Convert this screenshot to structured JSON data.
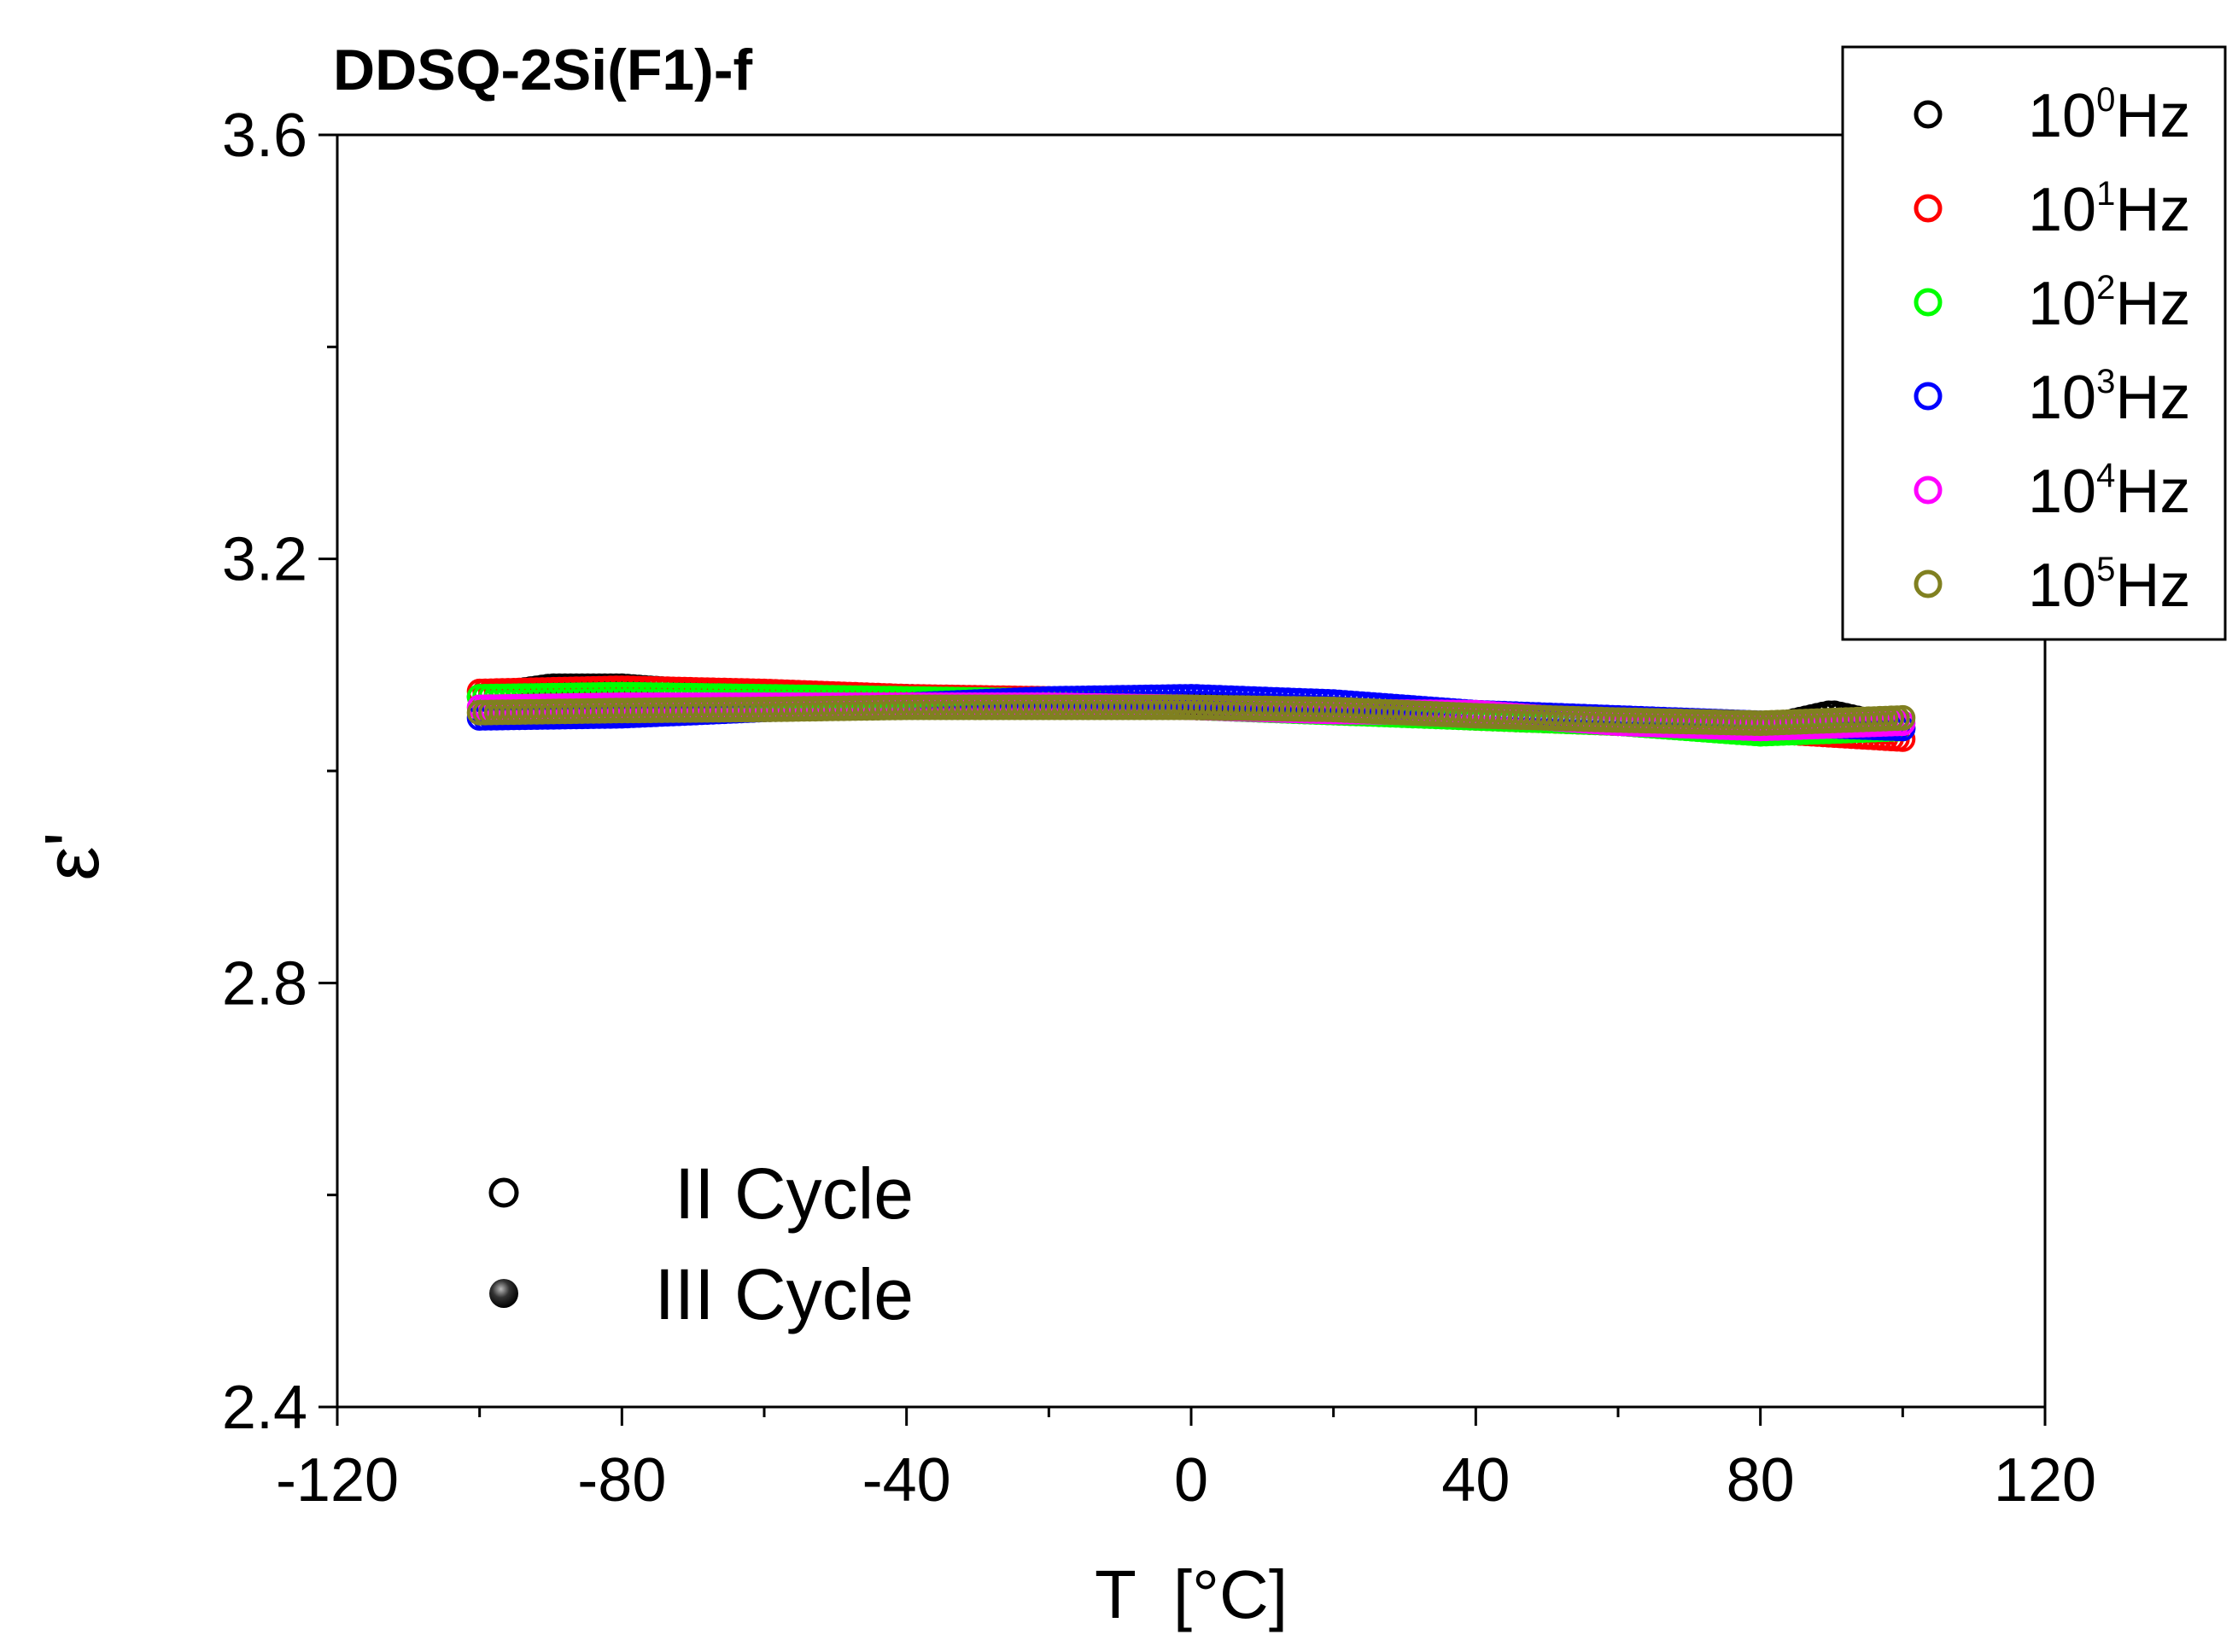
{
  "chart_data": {
    "type": "scatter",
    "title": "DDSQ-2Si(F1)-f",
    "xlabel": "T  [°C]",
    "ylabel": "ε'",
    "xlim": [
      -120,
      120
    ],
    "ylim": [
      2.4,
      3.6
    ],
    "xticks": [
      -120,
      -80,
      -40,
      0,
      40,
      80,
      120
    ],
    "xtick_labels": [
      "-120",
      "-80",
      "-40",
      "0",
      "40",
      "80",
      "120"
    ],
    "yticks": [
      2.4,
      2.8,
      3.2,
      3.6
    ],
    "ytick_labels": [
      "2.4",
      "2.8",
      "3.2",
      "3.6"
    ],
    "grid": false,
    "legend_position": "top-right",
    "series": [
      {
        "name": "10^0 Hz",
        "base": "10",
        "exp": "0",
        "unit": "Hz",
        "color": "#000000",
        "x": [
          -100,
          -90,
          -80,
          -60,
          -40,
          -20,
          0,
          20,
          40,
          60,
          80,
          90,
          100
        ],
        "y": [
          3.07,
          3.08,
          3.08,
          3.07,
          3.07,
          3.065,
          3.062,
          3.058,
          3.052,
          3.045,
          3.04,
          3.055,
          3.04
        ]
      },
      {
        "name": "10^1 Hz",
        "base": "10",
        "exp": "1",
        "unit": "Hz",
        "color": "#ff0000",
        "x": [
          -100,
          -80,
          -60,
          -40,
          -20,
          0,
          20,
          40,
          60,
          80,
          100
        ],
        "y": [
          3.075,
          3.078,
          3.075,
          3.07,
          3.068,
          3.06,
          3.056,
          3.05,
          3.045,
          3.038,
          3.03
        ]
      },
      {
        "name": "10^2 Hz",
        "base": "10",
        "exp": "2",
        "unit": "Hz",
        "color": "#00ff00",
        "x": [
          -100,
          -80,
          -60,
          -40,
          -20,
          0,
          20,
          40,
          60,
          80,
          100
        ],
        "y": [
          3.07,
          3.072,
          3.07,
          3.068,
          3.066,
          3.06,
          3.055,
          3.05,
          3.045,
          3.035,
          3.04
        ]
      },
      {
        "name": "10^3 Hz",
        "base": "10",
        "exp": "3",
        "unit": "Hz",
        "color": "#0000ff",
        "x": [
          -100,
          -80,
          -60,
          -40,
          -20,
          0,
          20,
          40,
          60,
          80,
          100
        ],
        "y": [
          3.05,
          3.052,
          3.058,
          3.062,
          3.068,
          3.07,
          3.065,
          3.055,
          3.05,
          3.045,
          3.04
        ]
      },
      {
        "name": "10^4 Hz",
        "base": "10",
        "exp": "4",
        "unit": "Hz",
        "color": "#ff00ff",
        "x": [
          -100,
          -80,
          -60,
          -40,
          -20,
          0,
          20,
          40,
          60,
          80,
          100
        ],
        "y": [
          3.06,
          3.062,
          3.062,
          3.062,
          3.062,
          3.06,
          3.056,
          3.055,
          3.045,
          3.04,
          3.045
        ]
      },
      {
        "name": "10^5 Hz",
        "base": "10",
        "exp": "5",
        "unit": "Hz",
        "color": "#808020",
        "x": [
          -100,
          -80,
          -60,
          -40,
          -20,
          0,
          20,
          40,
          60,
          80,
          100
        ],
        "y": [
          3.055,
          3.057,
          3.058,
          3.06,
          3.06,
          3.06,
          3.058,
          3.052,
          3.048,
          3.045,
          3.05
        ]
      }
    ],
    "cycle_legend": [
      {
        "label": "II Cycle",
        "marker": "open-circle"
      },
      {
        "label": "III Cycle",
        "marker": "filled-circle"
      }
    ]
  }
}
